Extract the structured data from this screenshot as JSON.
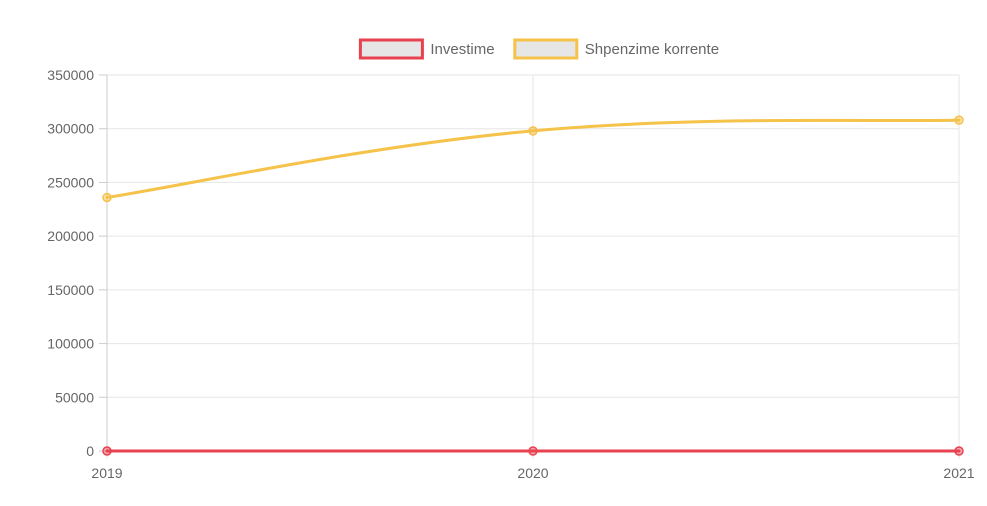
{
  "chart_data": {
    "type": "line",
    "x": [
      "2019",
      "2020",
      "2021"
    ],
    "ylim": [
      0,
      350000
    ],
    "y_ticks": [
      0,
      50000,
      100000,
      150000,
      200000,
      250000,
      300000,
      350000
    ],
    "y_tick_labels": [
      "0",
      "50000",
      "100000",
      "150000",
      "200000",
      "250000",
      "300000",
      "350000"
    ],
    "grid": true,
    "legend_position": "top-center",
    "series": [
      {
        "name": "Investime",
        "values": [
          0,
          0,
          0
        ],
        "color": "#e8414f"
      },
      {
        "name": "Shpenzime korrente",
        "values": [
          236000,
          298000,
          308000
        ],
        "color": "#f5c24a"
      }
    ],
    "legend_fill_color": "#e6e6e6"
  }
}
